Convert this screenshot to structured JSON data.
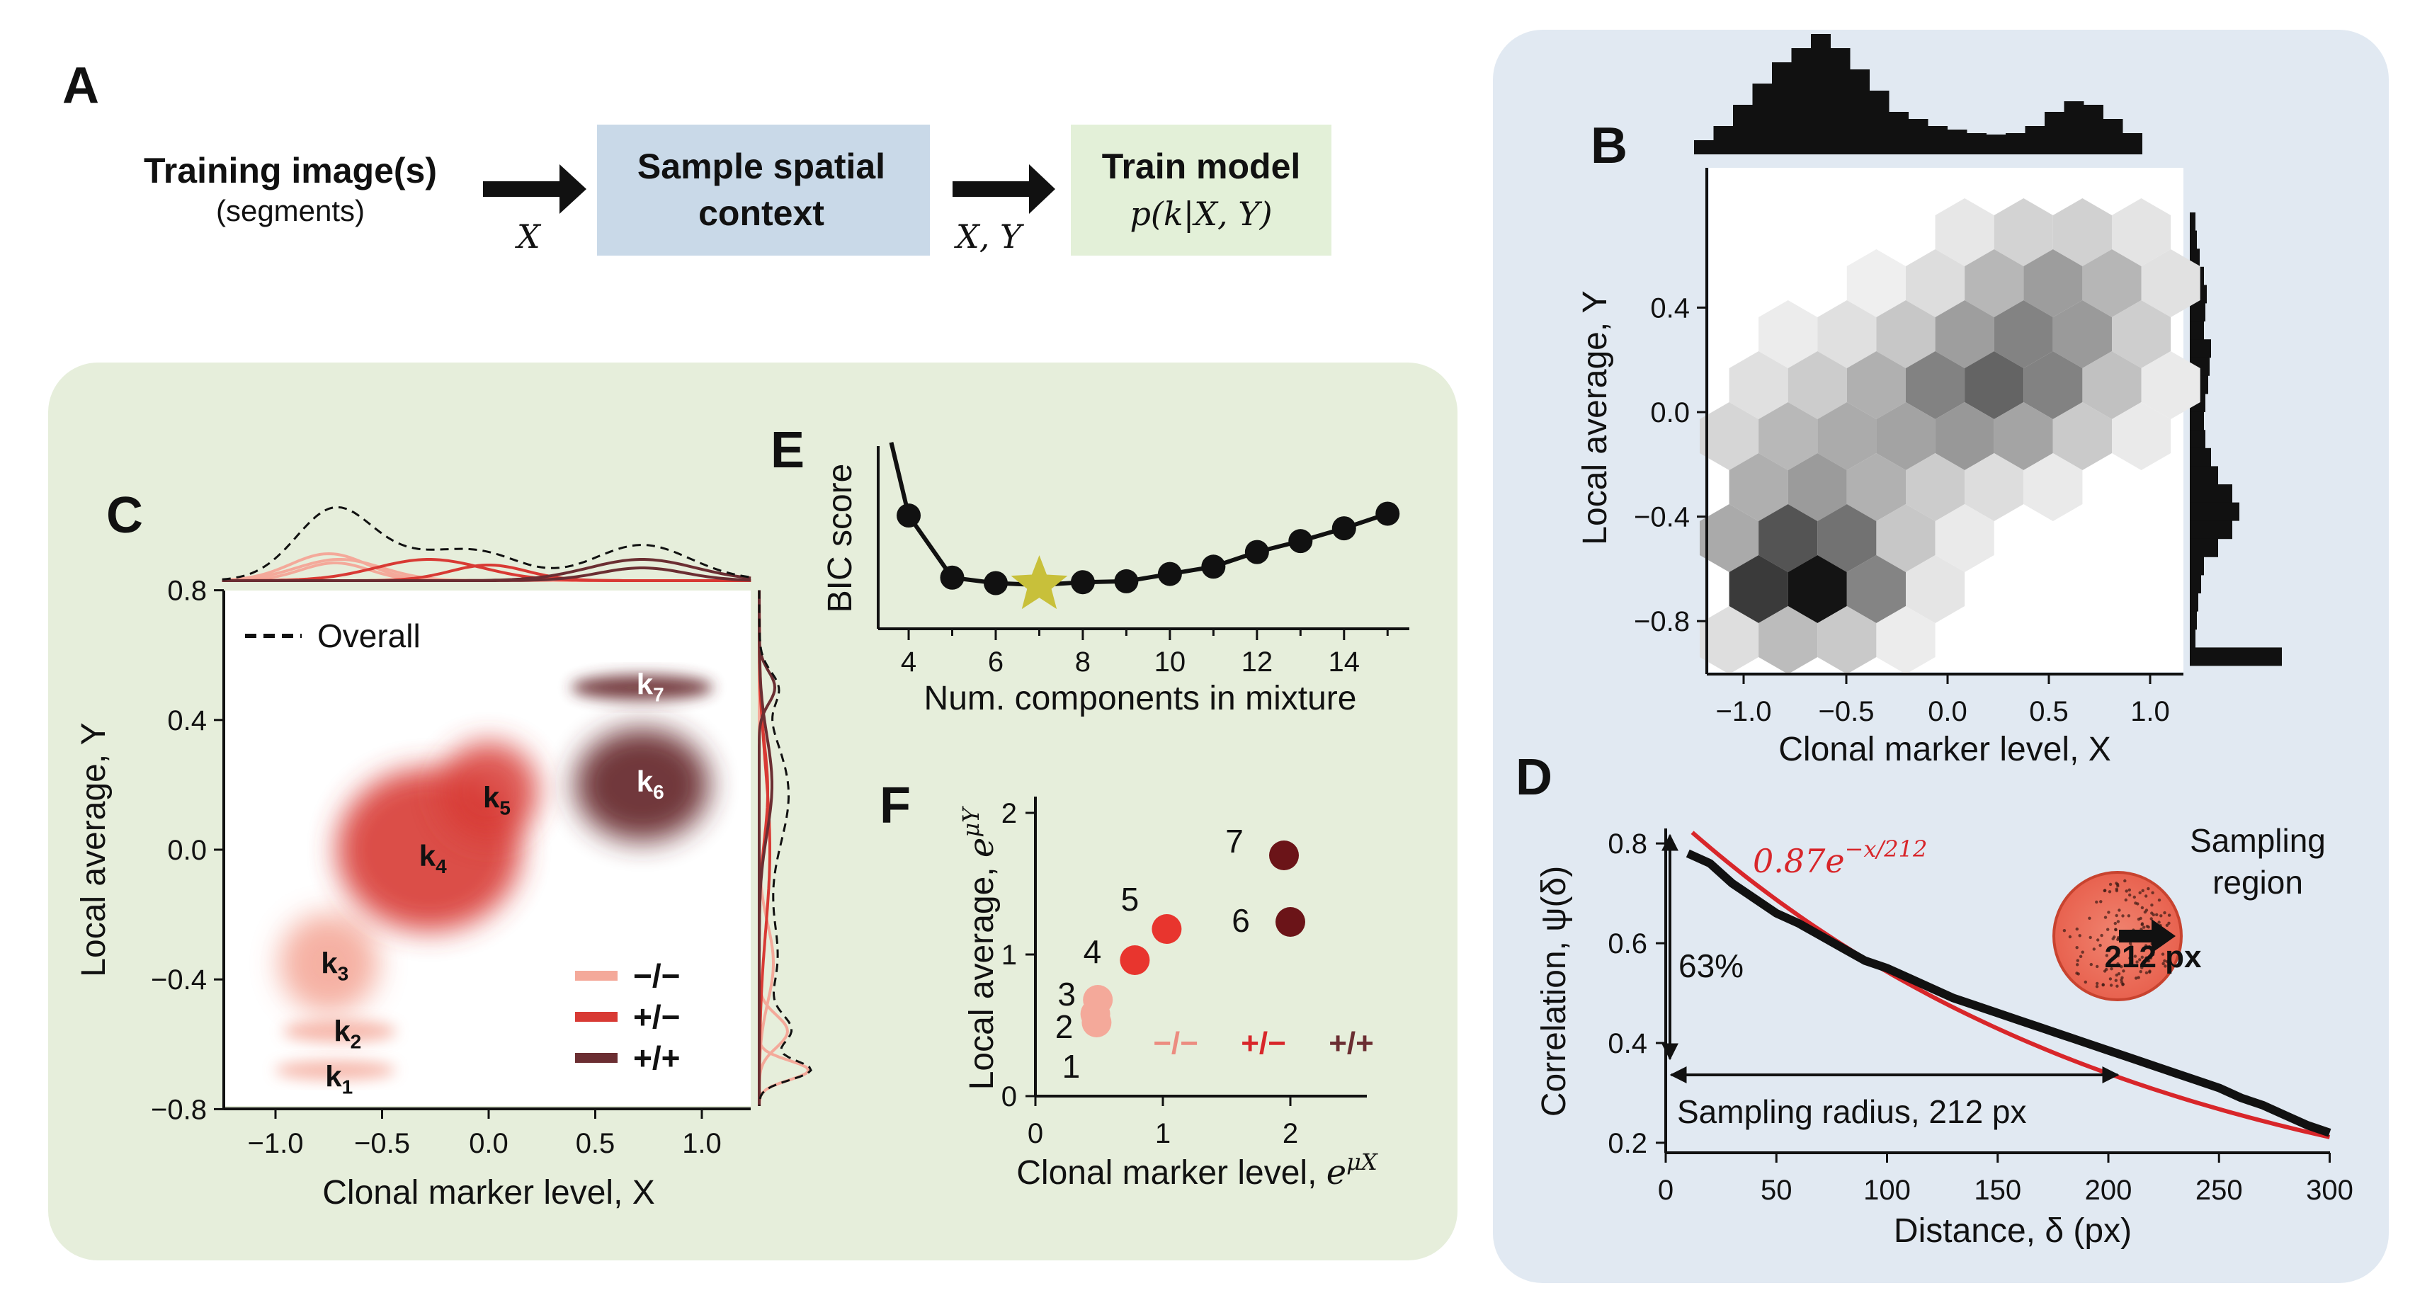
{
  "panelA": {
    "letter": "A",
    "training_title": "Training image(s)",
    "training_sub": "(segments)",
    "arrow1_label": "X",
    "sample_line1": "Sample spatial",
    "sample_line2": "context",
    "arrow2_label": "X, Y",
    "train_line1": "Train model",
    "train_formula": "p(k|X, Y)",
    "colors": {
      "sample_box": "#c9d9e8",
      "train_box": "#e3f0d8"
    }
  },
  "panelB": {
    "letter": "B",
    "xlabel": "Clonal marker level, X",
    "ylabel": "Local average, Y",
    "xticks": [
      "−1.0",
      "−0.5",
      "0.0",
      "0.5",
      "1.0"
    ],
    "yticks": [
      "0.4",
      "0.0",
      "−0.4",
      "−0.8"
    ],
    "background": "#e1e9f2"
  },
  "panelC": {
    "letter": "C",
    "xlabel": "Clonal marker level, X",
    "ylabel": "Local average, Y",
    "xticks": [
      "−1.0",
      "−0.5",
      "0.0",
      "0.5",
      "1.0"
    ],
    "yticks": [
      "0.8",
      "0.4",
      "0.0",
      "−0.4",
      "−0.8"
    ],
    "overall_label": "Overall",
    "legend": [
      "−/−",
      "+/−",
      "+/+"
    ],
    "component_labels": [
      "k1",
      "k2",
      "k3",
      "k4",
      "k5",
      "k6",
      "k7"
    ],
    "colors": {
      "neg_neg": "#f4a99a",
      "pos_neg": "#d83a34",
      "pos_pos": "#6b2e32"
    },
    "background": "#e6eedb"
  },
  "panelD": {
    "letter": "D",
    "xlabel": "Distance, δ  (px)",
    "ylabel": "Correlation, ψ(δ)",
    "fit_label": "0.87e^{−x/212}",
    "fit_base": "0.87e",
    "fit_exp": "−x/212",
    "pct_label": "63%",
    "radius_label": "Sampling radius, 212 px",
    "region_line1": "Sampling",
    "region_line2": "region",
    "region_px": "212 px",
    "xticks": [
      "0",
      "50",
      "100",
      "150",
      "200",
      "250",
      "300"
    ],
    "yticks": [
      "0.8",
      "0.6",
      "0.4",
      "0.2"
    ]
  },
  "chart_data": [
    {
      "panel": "D",
      "type": "line",
      "x": [
        10,
        20,
        30,
        40,
        50,
        60,
        70,
        80,
        90,
        100,
        110,
        120,
        130,
        140,
        150,
        160,
        170,
        180,
        190,
        200,
        210,
        220,
        230,
        240,
        250,
        260,
        270,
        280,
        290,
        300
      ],
      "series": [
        {
          "values": [
            0.78,
            0.76,
            0.72,
            0.69,
            0.66,
            0.64,
            0.615,
            0.59,
            0.565,
            0.55,
            0.53,
            0.51,
            0.49,
            0.475,
            0.46,
            0.445,
            0.43,
            0.415,
            0.4,
            0.385,
            0.37,
            0.355,
            0.34,
            0.325,
            0.31,
            0.29,
            0.275,
            0.255,
            0.235,
            0.22
          ]
        }
      ],
      "fit": {
        "amplitude": 0.87,
        "length": 212
      },
      "xlim": [
        0,
        300
      ],
      "ylim": [
        0.18,
        0.83
      ]
    },
    {
      "panel": "E",
      "type": "line",
      "xlabel": "Num. components in mixture",
      "ylabel": "BIC score",
      "x": [
        4,
        5,
        6,
        7,
        8,
        9,
        10,
        11,
        12,
        13,
        14,
        15
      ],
      "series": [
        {
          "values": [
            0.62,
            0.28,
            0.25,
            0.24,
            0.255,
            0.26,
            0.3,
            0.34,
            0.42,
            0.48,
            0.55,
            0.63
          ]
        }
      ],
      "selected_x": 7,
      "xticks": [
        "4",
        "6",
        "8",
        "10",
        "12",
        "14"
      ],
      "xlim": [
        3.3,
        15.5
      ],
      "ylim": [
        0,
        1
      ],
      "colors": {
        "star": "#c8c03a"
      }
    },
    {
      "panel": "F",
      "type": "scatter",
      "xlabel": "Clonal marker level, e^{μX}",
      "ylabel": "Local average, e^{μY}",
      "xlabel_text": "Clonal marker level, ",
      "ylabel_text": "Local average, ",
      "xticks": [
        "0",
        "1",
        "2"
      ],
      "yticks": [
        "0",
        "1",
        "2"
      ],
      "points": [
        {
          "label": "1",
          "x": 0.48,
          "y": 0.52,
          "group": "−/−"
        },
        {
          "label": "2",
          "x": 0.47,
          "y": 0.58,
          "group": "−/−"
        },
        {
          "label": "3",
          "x": 0.49,
          "y": 0.68,
          "group": "−/−"
        },
        {
          "label": "4",
          "x": 0.78,
          "y": 0.96,
          "group": "+/−"
        },
        {
          "label": "5",
          "x": 1.03,
          "y": 1.18,
          "group": "+/−"
        },
        {
          "label": "6",
          "x": 2.0,
          "y": 1.23,
          "group": "+/+"
        },
        {
          "label": "7",
          "x": 1.95,
          "y": 1.7,
          "group": "+/+"
        }
      ],
      "legend": [
        "−/−",
        "+/−",
        "+/+"
      ],
      "xlim": [
        0,
        2.6
      ],
      "ylim": [
        0,
        2.1
      ]
    }
  ]
}
